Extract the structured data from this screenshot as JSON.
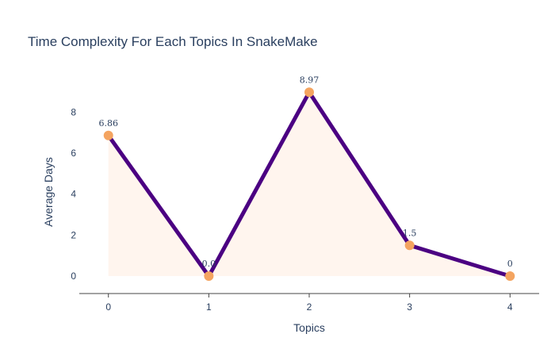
{
  "chart_data": {
    "type": "line",
    "title": "Time Complexity For Each Topics In SnakeMake",
    "xlabel": "Topics",
    "ylabel": "Average Days",
    "x": [
      0,
      1,
      2,
      3,
      4
    ],
    "values": [
      6.86,
      0.0,
      8.97,
      1.5,
      0
    ],
    "data_labels": [
      "6.86",
      "0.0",
      "8.97",
      "1.5",
      "0"
    ],
    "x_ticks": [
      "0",
      "1",
      "2",
      "3",
      "4"
    ],
    "y_ticks": [
      "0",
      "2",
      "4",
      "6",
      "8"
    ],
    "xlim": [
      -0.29,
      4.29
    ],
    "ylim": [
      -0.85,
      9.6
    ],
    "grid": false,
    "colors": {
      "line": "#4b0082",
      "marker": "#f4a460",
      "fill": "#fff5ee",
      "axis": "#444444"
    }
  }
}
